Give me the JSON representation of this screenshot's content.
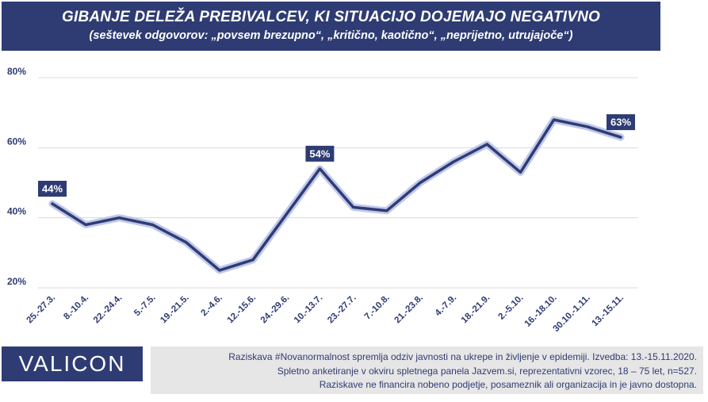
{
  "header": {
    "title": "GIBANJE DELEŽA PREBIVALCEV, KI SITUACIJO DOJEMAJO NEGATIVNO",
    "subtitle": "(seštevek odgovorov: „povsem brezupno“, „kritično, kaotično“, „neprijetno, utrujajoče“)"
  },
  "chart_data": {
    "type": "line",
    "categories": [
      "25.-27.3.",
      "8.-10.4.",
      "22.-24.4.",
      "5.-7.5.",
      "19.-21.5.",
      "2.-4.6.",
      "12.-15.6.",
      "24.-29.6.",
      "10.-13.7.",
      "23.-27.7.",
      "7.-10.8.",
      "21.-23.8.",
      "4.-7.9.",
      "18.-21.9.",
      "2.-5.10.",
      "16.-18.10.",
      "30.10.-1.11.",
      "13.-15.11."
    ],
    "series": [
      {
        "values": [
          44,
          38,
          40,
          38,
          33,
          25,
          28,
          41,
          54,
          43,
          42,
          50,
          56,
          61,
          53,
          68,
          66,
          63
        ]
      }
    ],
    "ylim": [
      20,
      80
    ],
    "yticks": [
      20,
      40,
      60,
      80
    ],
    "ytick_labels": [
      "20%",
      "40%",
      "60%",
      "80%"
    ],
    "data_labels": [
      {
        "index": 0,
        "text": "44%"
      },
      {
        "index": 8,
        "text": "54%"
      },
      {
        "index": 17,
        "text": "63%"
      }
    ],
    "grid": true,
    "colors": {
      "line": "#2e3c73",
      "glow": "#b8c2e8",
      "grid": "#d9d9d9",
      "label_bg": "#2e3c73"
    }
  },
  "footer": {
    "logo": "VALICON",
    "info_lines": [
      "Raziskava #Novanormalnost spremlja odziv javnosti na ukrepe in življenje v epidemiji. Izvedba: 13.-15.11.2020.",
      "Spletno anketiranje v okviru spletnega panela Jazvem.si, reprezentativni vzorec, 18 – 75 let, n=527.",
      "Raziskave ne financira nobeno podjetje, posameznik ali organizacija in je javno dostopna."
    ]
  }
}
